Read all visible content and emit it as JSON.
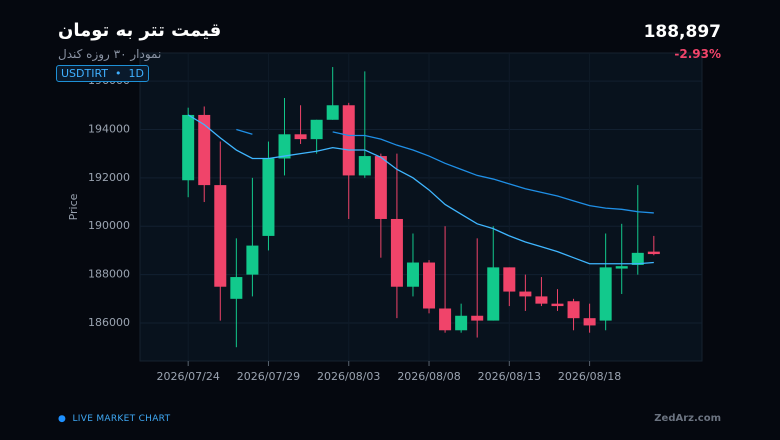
{
  "header": {
    "title": "قیمت تتر به تومان",
    "subtitle": "نمودار ۳۰ روزه کندل",
    "symbol": "USDTIRT",
    "interval": "1D",
    "price": "188,897",
    "change": "-2.93%"
  },
  "footer": {
    "status": "LIVE MARKET CHART",
    "brand": "ZedArz.com"
  },
  "chart_data": {
    "type": "candlestick",
    "y_label": "Price",
    "x": [
      "2026/07/24",
      "2026/07/25",
      "2026/07/26",
      "2026/07/27",
      "2026/07/28",
      "2026/07/29",
      "2026/07/30",
      "2026/07/31",
      "2026/08/01",
      "2026/08/02",
      "2026/08/03",
      "2026/08/04",
      "2026/08/05",
      "2026/08/06",
      "2026/08/07",
      "2026/08/08",
      "2026/08/09",
      "2026/08/10",
      "2026/08/11",
      "2026/08/12",
      "2026/08/13",
      "2026/08/14",
      "2026/08/15",
      "2026/08/16",
      "2026/08/17",
      "2026/08/18",
      "2026/08/19",
      "2026/08/20",
      "2026/08/21",
      "2026/08/22"
    ],
    "open": [
      191900,
      194600,
      191700,
      187000,
      188000,
      189600,
      192800,
      193800,
      193600,
      194400,
      195000,
      192100,
      192900,
      190300,
      187500,
      188500,
      186600,
      185700,
      186300,
      186100,
      188300,
      187300,
      187100,
      186800,
      186900,
      186200,
      186100,
      188250,
      188400,
      188950
    ],
    "high": [
      194900,
      194950,
      193500,
      189500,
      192000,
      193500,
      195300,
      195000,
      194400,
      196580,
      195100,
      196400,
      193000,
      193000,
      189700,
      188600,
      190000,
      186800,
      189500,
      190000,
      188300,
      188000,
      187900,
      187400,
      187000,
      186800,
      189700,
      190100,
      191700,
      189600
    ],
    "low": [
      191200,
      191000,
      186100,
      185000,
      187100,
      189000,
      192100,
      193400,
      193000,
      194400,
      190300,
      192000,
      188700,
      186200,
      187100,
      186400,
      185600,
      185600,
      185400,
      186100,
      186700,
      186500,
      186700,
      186500,
      185700,
      185600,
      185700,
      187200,
      188000,
      188800
    ],
    "close": [
      194600,
      191700,
      187500,
      187900,
      189200,
      192800,
      193800,
      193600,
      194400,
      195000,
      192100,
      192900,
      190300,
      187500,
      188500,
      186600,
      185700,
      186300,
      186100,
      188300,
      187300,
      187100,
      186800,
      186700,
      186200,
      185900,
      188300,
      188350,
      188900,
      188850
    ],
    "up_color": "#12c98c",
    "down_color": "#f0446a",
    "lines": [
      {
        "color": "#1f8fe6",
        "values": [
          194600,
          null,
          null,
          194000,
          193800,
          null,
          193750,
          null,
          null,
          193900,
          193750,
          193750,
          193600,
          193350,
          193150,
          192900,
          192600,
          192350,
          192100,
          191950,
          191750,
          191550,
          191400,
          191250,
          191050,
          190850,
          190750,
          190700,
          190600,
          190550
        ]
      },
      {
        "color": "#3fb6ff",
        "values": [
          194600,
          194200,
          193650,
          193150,
          192800,
          192800,
          192900,
          193000,
          193100,
          193250,
          193150,
          193150,
          192850,
          192350,
          192000,
          191500,
          190900,
          190500,
          190100,
          189900,
          189600,
          189350,
          189150,
          188950,
          188700,
          188450,
          188450,
          188450,
          188450,
          188500
        ]
      }
    ],
    "xlim": [
      "2026/07/21",
      "2026/08/25"
    ],
    "xticks": [
      "2026/07/24",
      "2026/07/29",
      "2026/08/03",
      "2026/08/08",
      "2026/08/13",
      "2026/08/18"
    ],
    "ylim": [
      184430,
      197160
    ],
    "yticks": [
      186000,
      188000,
      190000,
      192000,
      194000,
      196000
    ],
    "grid": true
  }
}
